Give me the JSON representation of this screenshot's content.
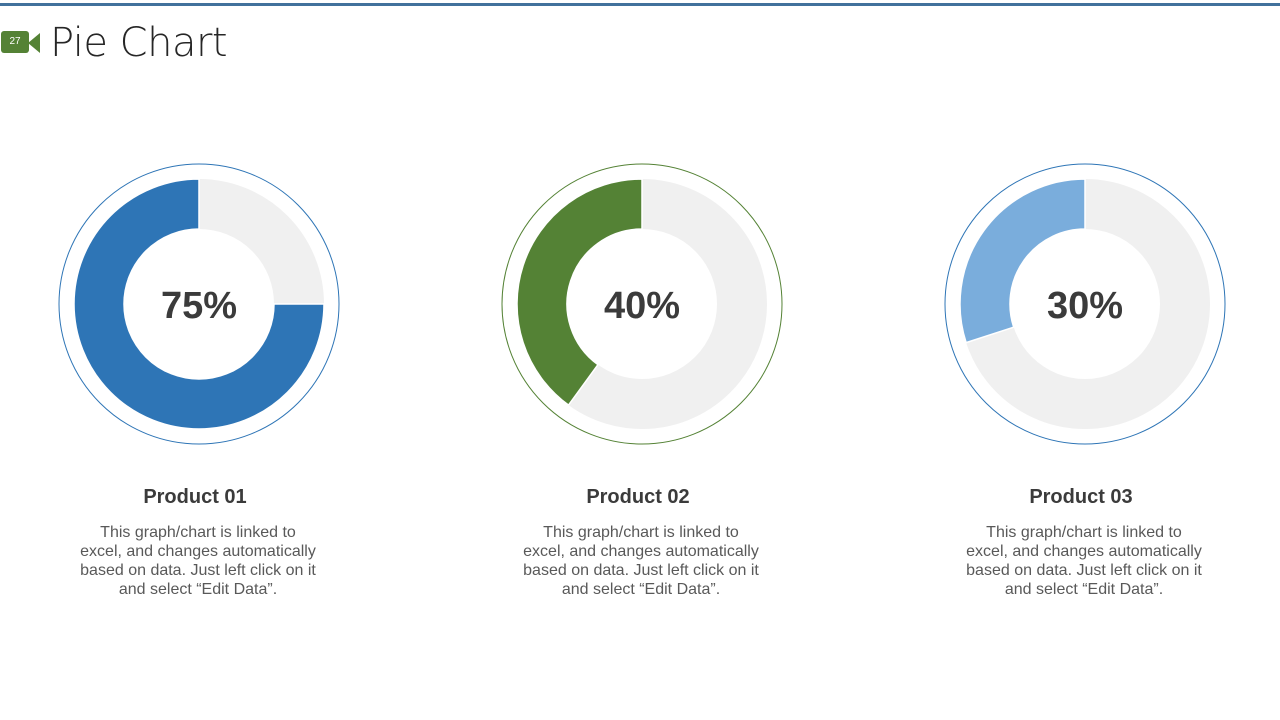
{
  "slide": {
    "number": "27",
    "title": "Pie Chart"
  },
  "colors": {
    "top_rule": "#41719c",
    "badge": "#548235",
    "track": "#f0f0f0",
    "text_dark": "#3b3b3b",
    "text_body": "#595959"
  },
  "chart_data": [
    {
      "type": "pie",
      "title": "Product 01",
      "value": 75,
      "label": "75%",
      "color": "#2e75b6",
      "ring_color": "#2e75b6",
      "track_color": "#f0f0f0"
    },
    {
      "type": "pie",
      "title": "Product 02",
      "value": 40,
      "label": "40%",
      "color": "#548235",
      "ring_color": "#548235",
      "track_color": "#f0f0f0"
    },
    {
      "type": "pie",
      "title": "Product 03",
      "value": 30,
      "label": "30%",
      "color": "#7aaddc",
      "ring_color": "#2e75b6",
      "track_color": "#f0f0f0"
    }
  ],
  "products": [
    {
      "name": "Product 01",
      "desc_lines": [
        "This graph/chart  is linked to",
        "excel, and changes automatically",
        "based on data. Just left click on it",
        "and select “Edit Data”."
      ]
    },
    {
      "name": "Product 02",
      "desc_lines": [
        "This graph/chart  is linked to",
        "excel, and changes automatically",
        "based on data. Just left click on it",
        "and select “Edit Data”."
      ]
    },
    {
      "name": "Product 03",
      "desc_lines": [
        "This graph/chart  is linked to",
        "excel, and changes automatically",
        "based on data. Just left click on it",
        "and select “Edit Data”."
      ]
    }
  ]
}
